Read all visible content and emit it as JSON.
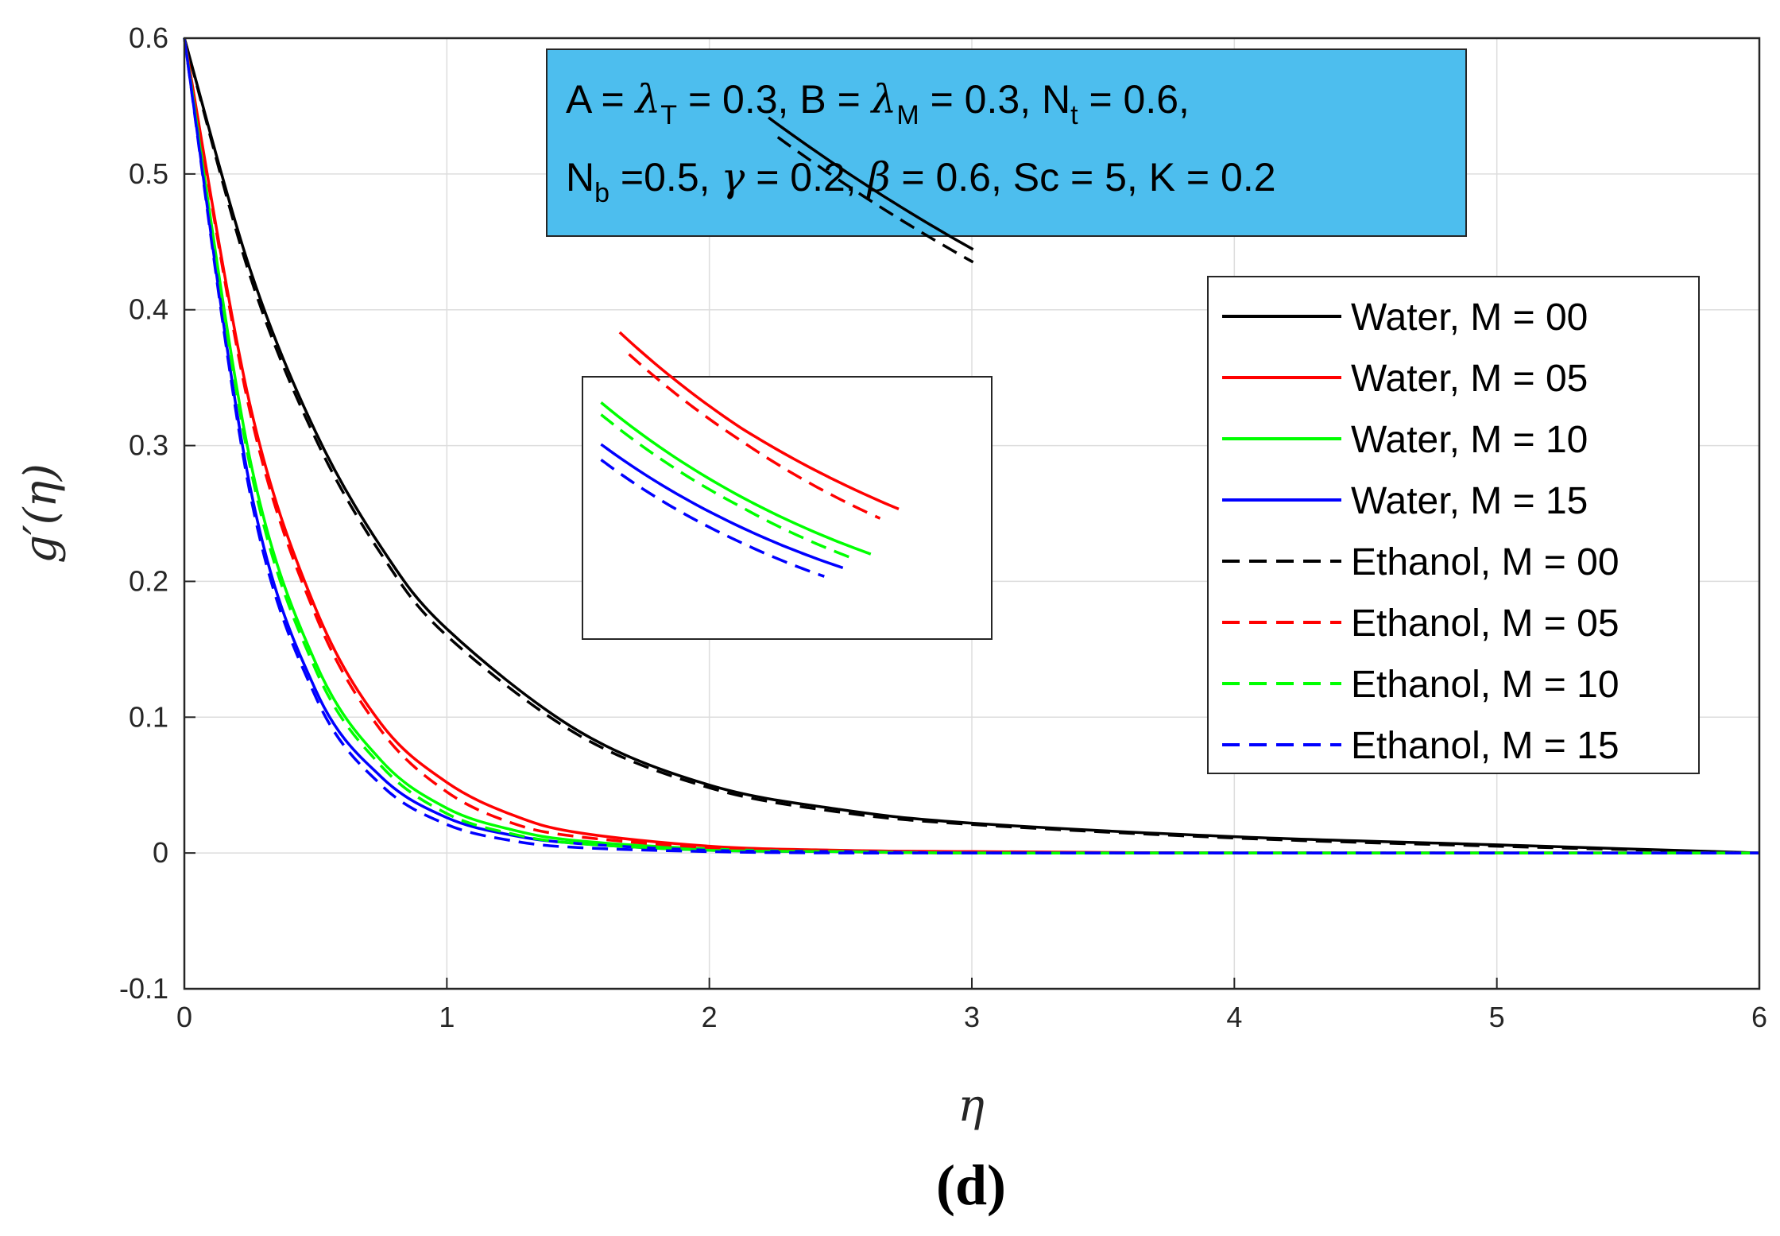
{
  "panel_label": "(d)",
  "chart_data": {
    "type": "line",
    "title": "",
    "xlabel": "η",
    "ylabel": "g′(η)",
    "xlim": [
      0,
      6
    ],
    "ylim": [
      -0.1,
      0.6
    ],
    "xticks": [
      0,
      1,
      2,
      3,
      4,
      5,
      6
    ],
    "yticks": [
      -0.1,
      0,
      0.1,
      0.2,
      0.3,
      0.4,
      0.5,
      0.6
    ],
    "xtick_labels": [
      "0",
      "1",
      "2",
      "3",
      "4",
      "5",
      "6"
    ],
    "ytick_labels": [
      "-0.1",
      "0",
      "0.1",
      "0.2",
      "0.3",
      "0.4",
      "0.5",
      "0.6"
    ],
    "grid": true,
    "legend_position": "right",
    "annotation": {
      "line1": {
        "a": "A = ",
        "lambda": "λ",
        "sub_t": "T",
        "b": " = 0.3, B = ",
        "lambda2": "λ",
        "sub_m": "M",
        "c": " = 0.3, N",
        "sub_nt": "t",
        "d": " = 0.6,"
      },
      "line2": {
        "a": "N",
        "sub_b": "b",
        "b": " =0.5, ",
        "gamma": "γ",
        "c": " = 0.2, ",
        "beta": "β",
        "d": " = 0.6, Sc = 5, K = 0.2"
      },
      "background": "#4dbeee"
    },
    "series": [
      {
        "name": "Water, M = 00",
        "color": "#000000",
        "dash": "solid",
        "x": [
          0,
          0.25,
          0.5,
          0.75,
          1,
          1.5,
          2,
          2.5,
          3,
          4,
          5,
          6
        ],
        "y": [
          0.6,
          0.43,
          0.31,
          0.225,
          0.165,
          0.09,
          0.05,
          0.032,
          0.022,
          0.012,
          0.006,
          0
        ]
      },
      {
        "name": "Water, M = 05",
        "color": "#ff0000",
        "dash": "solid",
        "x": [
          0,
          0.25,
          0.5,
          0.75,
          1,
          1.25,
          1.5,
          2,
          2.5,
          3,
          4,
          5,
          6
        ],
        "y": [
          0.6,
          0.33,
          0.18,
          0.095,
          0.052,
          0.028,
          0.015,
          0.005,
          0.002,
          0.001,
          0,
          0,
          0
        ]
      },
      {
        "name": "Water, M = 10",
        "color": "#00ff00",
        "dash": "solid",
        "x": [
          0,
          0.25,
          0.5,
          0.75,
          1,
          1.25,
          1.5,
          2,
          2.5,
          3,
          4,
          5,
          6
        ],
        "y": [
          0.6,
          0.29,
          0.14,
          0.068,
          0.033,
          0.017,
          0.009,
          0.003,
          0.001,
          0,
          0,
          0,
          0
        ]
      },
      {
        "name": "Water, M = 15",
        "color": "#0000ff",
        "dash": "solid",
        "x": [
          0,
          0.25,
          0.5,
          0.75,
          1,
          1.25,
          1.5,
          2,
          2.5,
          3,
          4,
          5,
          6
        ],
        "y": [
          0.6,
          0.27,
          0.12,
          0.056,
          0.026,
          0.013,
          0.007,
          0.002,
          0.001,
          0,
          0,
          0,
          0
        ]
      },
      {
        "name": "Ethanol, M = 00",
        "color": "#000000",
        "dash": "dashed",
        "x": [
          0,
          0.25,
          0.5,
          0.75,
          1,
          1.5,
          2,
          2.5,
          3,
          4,
          5,
          6
        ],
        "y": [
          0.6,
          0.425,
          0.305,
          0.22,
          0.16,
          0.087,
          0.048,
          0.03,
          0.021,
          0.011,
          0.005,
          0
        ]
      },
      {
        "name": "Ethanol, M = 05",
        "color": "#ff0000",
        "dash": "dashed",
        "x": [
          0,
          0.25,
          0.5,
          0.75,
          1,
          1.25,
          1.5,
          2,
          2.5,
          3,
          4,
          5,
          6
        ],
        "y": [
          0.6,
          0.325,
          0.175,
          0.09,
          0.045,
          0.022,
          0.012,
          0.004,
          0.001,
          0,
          0,
          0,
          0
        ]
      },
      {
        "name": "Ethanol, M = 10",
        "color": "#00ff00",
        "dash": "dashed",
        "x": [
          0,
          0.25,
          0.5,
          0.75,
          1,
          1.25,
          1.5,
          2,
          2.5,
          3,
          4,
          5,
          6
        ],
        "y": [
          0.6,
          0.285,
          0.135,
          0.064,
          0.029,
          0.014,
          0.007,
          0.002,
          0.001,
          0,
          0,
          0,
          0
        ]
      },
      {
        "name": "Ethanol, M = 15",
        "color": "#0000ff",
        "dash": "dashed",
        "x": [
          0,
          0.25,
          0.5,
          0.75,
          1,
          1.25,
          1.5,
          2,
          2.5,
          3,
          4,
          5,
          6
        ],
        "y": [
          0.6,
          0.265,
          0.115,
          0.05,
          0.021,
          0.009,
          0.004,
          0.001,
          0,
          0,
          0,
          0,
          0
        ]
      }
    ]
  }
}
